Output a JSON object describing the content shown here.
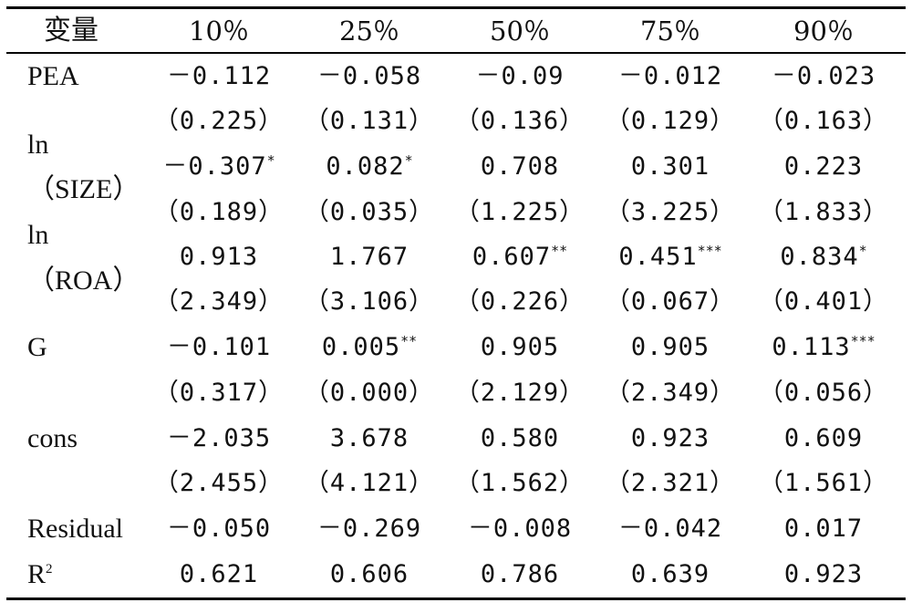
{
  "table": {
    "header": [
      "变量",
      "10％",
      "25％",
      "50％",
      "75％",
      "90％"
    ],
    "rows": [
      {
        "label": "PEA",
        "values": [
          "－0.112",
          "－0.058",
          "－0.09",
          "－0.012",
          "－0.023"
        ],
        "stars": [
          "",
          "",
          "",
          "",
          ""
        ]
      },
      {
        "label": "",
        "values": [
          "（0.225）",
          "（0.131）",
          "（0.136）",
          "（0.129）",
          "（0.163）"
        ],
        "stars": [
          "",
          "",
          "",
          "",
          ""
        ]
      },
      {
        "label": "ln",
        "values": [
          "－0.307",
          "0.082",
          "0.708",
          "0.301",
          "0.223"
        ],
        "stars": [
          "*",
          "*",
          "",
          "",
          ""
        ]
      },
      {
        "label": "（SIZE）",
        "values": [
          "（0.189）",
          "（0.035）",
          "（1.225）",
          "（3.225）",
          "（1.833）"
        ],
        "stars": [
          "",
          "",
          "",
          "",
          ""
        ]
      },
      {
        "label": "ln",
        "values": [
          "0.913",
          "1.767",
          "0.607",
          "0.451",
          "0.834"
        ],
        "stars": [
          "",
          "",
          "**",
          "***",
          "*"
        ]
      },
      {
        "label": "（ROA）",
        "values": [
          "（2.349）",
          "（3.106）",
          "（0.226）",
          "（0.067）",
          "（0.401）"
        ],
        "stars": [
          "",
          "",
          "",
          "",
          ""
        ]
      },
      {
        "label": "G",
        "values": [
          "－0.101",
          "0.005",
          "0.905",
          "0.905",
          "0.113"
        ],
        "stars": [
          "",
          "**",
          "",
          "",
          "***"
        ]
      },
      {
        "label": "",
        "values": [
          "（0.317）",
          "（0.000）",
          "（2.129）",
          "（2.349）",
          "（0.056）"
        ],
        "stars": [
          "",
          "",
          "",
          "",
          ""
        ]
      },
      {
        "label": "cons",
        "values": [
          "－2.035",
          "3.678",
          "0.580",
          "0.923",
          "0.609"
        ],
        "stars": [
          "",
          "",
          "",
          "",
          ""
        ]
      },
      {
        "label": "",
        "values": [
          "（2.455）",
          "（4.121）",
          "（1.562）",
          "（2.321）",
          "（1.561）"
        ],
        "stars": [
          "",
          "",
          "",
          "",
          ""
        ]
      },
      {
        "label": "Residual",
        "values": [
          "－0.050",
          "－0.269",
          "－0.008",
          "－0.042",
          "0.017"
        ],
        "stars": [
          "",
          "",
          "",
          "",
          ""
        ]
      },
      {
        "label": "R",
        "label_sup": "2",
        "values": [
          "0.621",
          "0.606",
          "0.786",
          "0.639",
          "0.923"
        ],
        "stars": [
          "",
          "",
          "",
          "",
          ""
        ]
      }
    ]
  }
}
